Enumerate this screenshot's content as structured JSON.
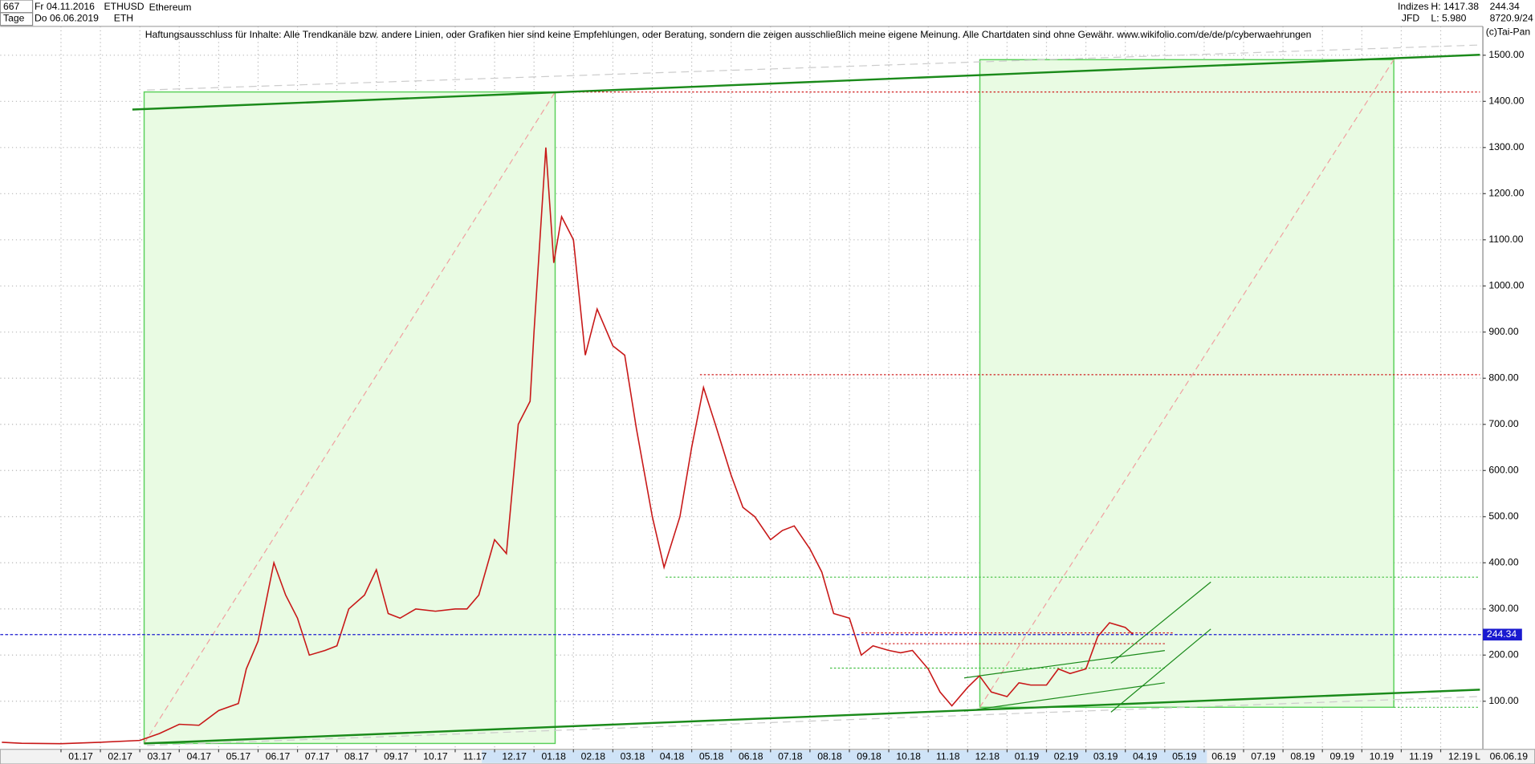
{
  "chart_data": {
    "type": "line",
    "title": "Ethereum",
    "header": {
      "count": "667",
      "start_date": "Fr 04.11.2016",
      "period": "Tage",
      "end_date": "Do 06.06.2019",
      "symbol": "ETHUSD",
      "short": "ETH",
      "group": "Indizes",
      "broker": "JFD",
      "high": "H: 1417.38",
      "low": "L: 5.980",
      "last": "244.34",
      "extra": "8720.9/24",
      "copyright": "(c)Tai-Pan",
      "disclaimer": "Haftungsausschluss für Inhalte: Alle Trendkanäle bzw. andere Linien, oder Grafiken hier sind keine Empfehlungen, oder Beratung, sondern die zeigen ausschließlich meine eigene Meinung. Alle Chartdaten sind ohne Gewähr.  www.wikifolio.com/de/de/p/cyberwaehrungen",
      "scale_mode": "L",
      "axis_date": "06.06.19"
    },
    "last_price": {
      "value": 244.34,
      "label": "244.34"
    },
    "x": [
      -1.5,
      -1,
      0,
      1,
      2,
      2.5,
      3,
      3.5,
      4,
      4.5,
      4.7,
      5,
      5.4,
      5.7,
      6,
      6.3,
      6.7,
      7,
      7.3,
      7.7,
      8,
      8.3,
      8.6,
      9,
      9.5,
      10,
      10.3,
      10.6,
      11,
      11.3,
      11.6,
      11.9,
      12,
      12.3,
      12.5,
      12.7,
      13,
      13.3,
      13.6,
      14,
      14.3,
      14.6,
      15,
      15.3,
      15.7,
      16,
      16.3,
      16.6,
      17,
      17.3,
      17.6,
      18,
      18.3,
      18.6,
      19,
      19.3,
      19.6,
      20,
      20.3,
      20.6,
      21,
      21.3,
      21.6,
      22,
      22.3,
      22.6,
      23,
      23.3,
      23.6,
      24,
      24.3,
      24.6,
      25,
      25.3,
      25.6,
      26,
      26.3,
      26.6,
      27,
      27.2
    ],
    "series": [
      {
        "name": "ETHUSD",
        "color": "#c81818",
        "values": [
          11,
          9,
          8,
          11,
          15,
          30,
          50,
          48,
          80,
          95,
          170,
          230,
          400,
          330,
          280,
          200,
          210,
          220,
          300,
          330,
          385,
          290,
          280,
          300,
          295,
          300,
          300,
          330,
          450,
          420,
          700,
          750,
          900,
          1300,
          1050,
          1150,
          1100,
          850,
          950,
          870,
          850,
          690,
          500,
          390,
          500,
          650,
          780,
          700,
          590,
          520,
          500,
          450,
          470,
          480,
          430,
          380,
          290,
          280,
          200,
          220,
          210,
          205,
          210,
          170,
          120,
          90,
          130,
          155,
          120,
          110,
          140,
          135,
          135,
          170,
          160,
          170,
          240,
          270,
          260,
          244.34
        ]
      }
    ],
    "xlim": [
      -1.54,
      36.07
    ],
    "ylim": [
      0,
      1590
    ],
    "xticks": [
      {
        "value": 0,
        "label": "01.17"
      },
      {
        "value": 1,
        "label": "02.17"
      },
      {
        "value": 2,
        "label": "03.17"
      },
      {
        "value": 3,
        "label": "04.17"
      },
      {
        "value": 4,
        "label": "05.17"
      },
      {
        "value": 5,
        "label": "06.17"
      },
      {
        "value": 6,
        "label": "07.17"
      },
      {
        "value": 7,
        "label": "08.17"
      },
      {
        "value": 8,
        "label": "09.17"
      },
      {
        "value": 9,
        "label": "10.17"
      },
      {
        "value": 10,
        "label": "11.17"
      },
      {
        "value": 11,
        "label": "12.17"
      },
      {
        "value": 12,
        "label": "01.18"
      },
      {
        "value": 13,
        "label": "02.18"
      },
      {
        "value": 14,
        "label": "03.18"
      },
      {
        "value": 15,
        "label": "04.18"
      },
      {
        "value": 16,
        "label": "05.18"
      },
      {
        "value": 17,
        "label": "06.18"
      },
      {
        "value": 18,
        "label": "07.18"
      },
      {
        "value": 19,
        "label": "08.18"
      },
      {
        "value": 20,
        "label": "09.18"
      },
      {
        "value": 21,
        "label": "10.18"
      },
      {
        "value": 22,
        "label": "11.18"
      },
      {
        "value": 23,
        "label": "12.18"
      },
      {
        "value": 24,
        "label": "01.19"
      },
      {
        "value": 25,
        "label": "02.19"
      },
      {
        "value": 26,
        "label": "03.19"
      },
      {
        "value": 27,
        "label": "04.19"
      },
      {
        "value": 28,
        "label": "05.19"
      },
      {
        "value": 29,
        "label": "06.19"
      },
      {
        "value": 30,
        "label": "07.19"
      },
      {
        "value": 31,
        "label": "08.19"
      },
      {
        "value": 32,
        "label": "09.19"
      },
      {
        "value": 33,
        "label": "10.19"
      },
      {
        "value": 34,
        "label": "11.19"
      },
      {
        "value": 35,
        "label": "12.19"
      }
    ],
    "yticks": [
      {
        "value": 100,
        "label": "100.00"
      },
      {
        "value": 200,
        "label": "200.00"
      },
      {
        "value": 300,
        "label": "300.00"
      },
      {
        "value": 400,
        "label": "400.00"
      },
      {
        "value": 500,
        "label": "500.00"
      },
      {
        "value": 600,
        "label": "600.00"
      },
      {
        "value": 700,
        "label": "700.00"
      },
      {
        "value": 800,
        "label": "800.00"
      },
      {
        "value": 900,
        "label": "900.00"
      },
      {
        "value": 1000,
        "label": "1000.00"
      },
      {
        "value": 1100,
        "label": "1100.00"
      },
      {
        "value": 1200,
        "label": "1200.00"
      },
      {
        "value": 1300,
        "label": "1300.00"
      },
      {
        "value": 1400,
        "label": "1400.00"
      },
      {
        "value": 1500,
        "label": "1500.00"
      }
    ],
    "grid": true
  }
}
